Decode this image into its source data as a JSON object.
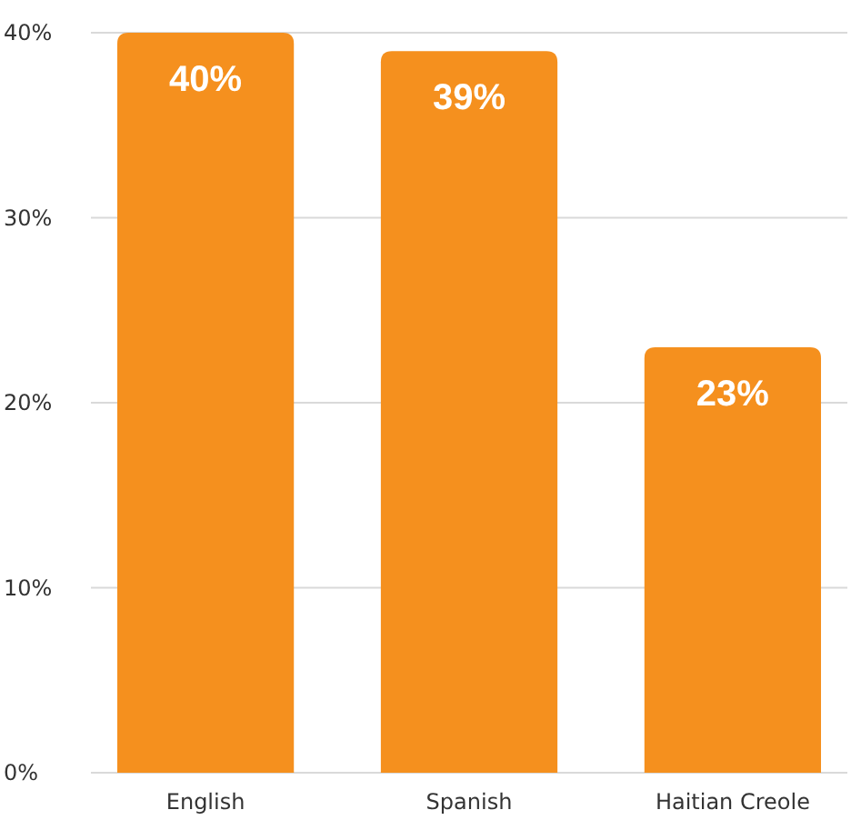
{
  "chart_data": {
    "type": "bar",
    "categories": [
      "English",
      "Spanish",
      "Haitian Creole"
    ],
    "values": [
      40,
      39,
      23
    ],
    "color": "#f5901e",
    "value_labels": [
      "40%",
      "39%",
      "23%"
    ],
    "ylim": [
      0,
      40
    ],
    "yticks": [
      {
        "value": 0,
        "label": "0%"
      },
      {
        "value": 10,
        "label": "10%"
      },
      {
        "value": 20,
        "label": "20%"
      },
      {
        "value": 30,
        "label": "30%"
      },
      {
        "value": 40,
        "label": "40%"
      }
    ],
    "grid": "y"
  }
}
